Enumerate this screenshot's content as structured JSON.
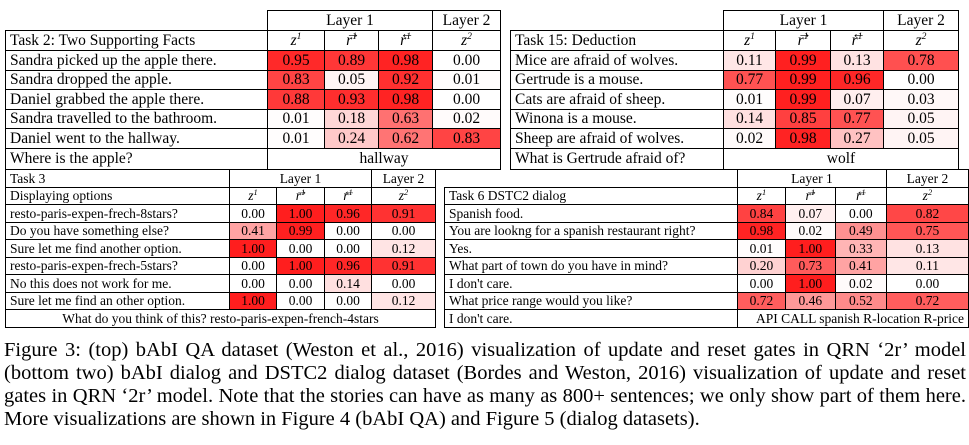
{
  "symbols": {
    "z1": "z",
    "r1": "r",
    "z2": "z",
    "sup1": "1",
    "sup2": "2"
  },
  "panels": [
    {
      "id": "task2",
      "layer1": "Layer 1",
      "layer2": "Layer 2",
      "task": "Task 2: Two Supporting Facts",
      "rows": [
        {
          "text": "Sandra picked up the apple there.",
          "values": [
            "0.95",
            "0.89",
            "0.98",
            "0.00"
          ]
        },
        {
          "text": "Sandra dropped the apple.",
          "values": [
            "0.83",
            "0.05",
            "0.92",
            "0.01"
          ]
        },
        {
          "text": "Daniel grabbed the apple there.",
          "values": [
            "0.88",
            "0.93",
            "0.98",
            "0.00"
          ]
        },
        {
          "text": "Sandra travelled to the bathroom.",
          "values": [
            "0.01",
            "0.18",
            "0.63",
            "0.02"
          ]
        },
        {
          "text": "Daniel went to the hallway.",
          "values": [
            "0.01",
            "0.24",
            "0.62",
            "0.83"
          ]
        }
      ],
      "question": "Where is the apple?",
      "answer": "hallway"
    },
    {
      "id": "task15",
      "layer1": "Layer 1",
      "layer2": "Layer 2",
      "task": "Task 15: Deduction",
      "rows": [
        {
          "text": "Mice are afraid of wolves.",
          "values": [
            "0.11",
            "0.99",
            "0.13",
            "0.78"
          ]
        },
        {
          "text": "Gertrude is a mouse.",
          "values": [
            "0.77",
            "0.99",
            "0.96",
            "0.00"
          ]
        },
        {
          "text": "Cats are afraid of sheep.",
          "values": [
            "0.01",
            "0.99",
            "0.07",
            "0.03"
          ]
        },
        {
          "text": "Winona is a mouse.",
          "values": [
            "0.14",
            "0.85",
            "0.77",
            "0.05"
          ]
        },
        {
          "text": "Sheep are afraid of wolves.",
          "values": [
            "0.02",
            "0.98",
            "0.27",
            "0.05"
          ]
        }
      ],
      "question": "What is Gertrude afraid of?",
      "answer": "wolf"
    },
    {
      "id": "task3",
      "task": "Task 3",
      "layer1": "Layer 1",
      "layer2": "Layer 2",
      "subtitle": "Displaying options",
      "rows": [
        {
          "text": "resto-paris-expen-frech-8stars?",
          "values": [
            "0.00",
            "1.00",
            "0.96",
            "0.91"
          ]
        },
        {
          "text": "Do you have something else?",
          "values": [
            "0.41",
            "0.99",
            "0.00",
            "0.00"
          ]
        },
        {
          "text": "Sure let me find another option.",
          "values": [
            "1.00",
            "0.00",
            "0.00",
            "0.12"
          ]
        },
        {
          "text": "resto-paris-expen-frech-5stars?",
          "values": [
            "0.00",
            "1.00",
            "0.96",
            "0.91"
          ]
        },
        {
          "text": "No this does not work for me.",
          "values": [
            "0.00",
            "0.00",
            "0.14",
            "0.00"
          ]
        },
        {
          "text": "Sure let me find an other option.",
          "values": [
            "1.00",
            "0.00",
            "0.00",
            "0.12"
          ]
        }
      ],
      "footer": "What do you think of this? resto-paris-expen-french-4stars"
    },
    {
      "id": "task6",
      "layer1": "Layer 1",
      "layer2": "Layer 2",
      "task": "Task 6 DSTC2 dialog",
      "rows": [
        {
          "text": "Spanish food.",
          "values": [
            "0.84",
            "0.07",
            "0.00",
            "0.82"
          ]
        },
        {
          "text": "You are lookng for a spanish restaurant right?",
          "values": [
            "0.98",
            "0.02",
            "0.49",
            "0.75"
          ]
        },
        {
          "text": "Yes.",
          "values": [
            "0.01",
            "1.00",
            "0.33",
            "0.13"
          ]
        },
        {
          "text": "What part of town do you have in mind?",
          "values": [
            "0.20",
            "0.73",
            "0.41",
            "0.11"
          ]
        },
        {
          "text": "I don't care.",
          "values": [
            "0.00",
            "1.00",
            "0.02",
            "0.00"
          ]
        },
        {
          "text": "What price range would you like?",
          "values": [
            "0.72",
            "0.46",
            "0.52",
            "0.72"
          ]
        }
      ],
      "question": "I don't care.",
      "answer": "API CALL spanish R-location R-price"
    }
  ],
  "caption": "Figure 3: (top) bAbI QA dataset (Weston et al., 2016) visualization of update and reset gates in QRN ‘2r’ model (bottom two) bAbI dialog and DSTC2 dialog dataset (Bordes and Weston, 2016) visualization of update and reset gates in QRN ‘2r’ model. Note that the stories can have as many as 800+ sentences; we only show part of them here. More visualizations are shown in Figure 4 (bAbI QA) and Figure 5 (dialog datasets)."
}
